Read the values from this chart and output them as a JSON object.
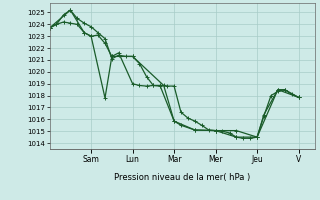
{
  "background_color": "#ceeae7",
  "grid_color": "#a8ccc8",
  "line_color": "#1a5c2a",
  "xlabel": "Pression niveau de la mer( hPa )",
  "ylim": [
    1013.5,
    1025.8
  ],
  "ytick_values": [
    1014,
    1015,
    1016,
    1017,
    1018,
    1019,
    1020,
    1021,
    1022,
    1023,
    1024,
    1025
  ],
  "x_day_labels": [
    "Sam",
    "Lun",
    "Mar",
    "Mer",
    "Jeu",
    "V"
  ],
  "x_day_positions": [
    2.0,
    4.0,
    6.0,
    8.0,
    10.0,
    12.0
  ],
  "xlim": [
    0,
    12.8
  ],
  "series1_x": [
    0.0,
    0.33,
    0.67,
    1.0,
    1.33,
    1.67,
    2.0,
    2.33,
    2.67,
    3.0,
    3.33,
    3.67,
    4.0,
    4.33,
    4.67,
    5.0,
    5.33,
    5.67,
    6.0,
    6.33,
    6.67,
    7.0,
    7.33,
    7.67,
    8.0,
    8.33,
    8.67,
    9.0,
    9.33,
    9.67,
    10.0,
    10.33,
    10.67,
    11.0,
    11.33,
    11.67,
    12.0
  ],
  "series1_y": [
    1023.7,
    1024.0,
    1024.8,
    1025.2,
    1024.5,
    1024.1,
    1023.8,
    1023.3,
    1022.8,
    1021.1,
    1021.4,
    1021.3,
    1021.3,
    1020.7,
    1019.6,
    1018.85,
    1018.85,
    1018.8,
    1018.8,
    1016.6,
    1016.1,
    1015.85,
    1015.5,
    1015.1,
    1015.05,
    1015.0,
    1014.85,
    1014.5,
    1014.4,
    1014.4,
    1014.5,
    1016.3,
    1018.0,
    1018.35,
    1018.5,
    1018.1,
    1017.85
  ],
  "series2_x": [
    0.0,
    0.33,
    0.67,
    1.0,
    1.33,
    1.67,
    2.0,
    2.33,
    2.67,
    3.0,
    3.33,
    4.0,
    4.33,
    4.67,
    5.0,
    5.33,
    6.0,
    6.33,
    7.0,
    8.0,
    9.0,
    10.0,
    10.33,
    11.0,
    11.33,
    12.0
  ],
  "series2_y": [
    1023.7,
    1024.0,
    1024.2,
    1024.1,
    1024.0,
    1023.3,
    1023.0,
    1023.1,
    1022.4,
    1021.3,
    1021.6,
    1019.0,
    1018.85,
    1018.8,
    1018.85,
    1018.8,
    1015.85,
    1015.5,
    1015.1,
    1015.05,
    1015.05,
    1014.5,
    1016.4,
    1018.5,
    1018.5,
    1017.85
  ],
  "series3_x": [
    0.0,
    1.0,
    1.67,
    2.0,
    2.67,
    3.0,
    4.0,
    5.5,
    6.0,
    7.0,
    8.0,
    9.0,
    10.0,
    11.0,
    12.0
  ],
  "series3_y": [
    1023.7,
    1025.2,
    1023.3,
    1023.0,
    1017.8,
    1021.3,
    1021.3,
    1018.85,
    1015.85,
    1015.1,
    1015.05,
    1014.5,
    1014.5,
    1018.5,
    1017.85
  ],
  "marker": "+",
  "markersize": 3.5,
  "linewidth": 0.9
}
